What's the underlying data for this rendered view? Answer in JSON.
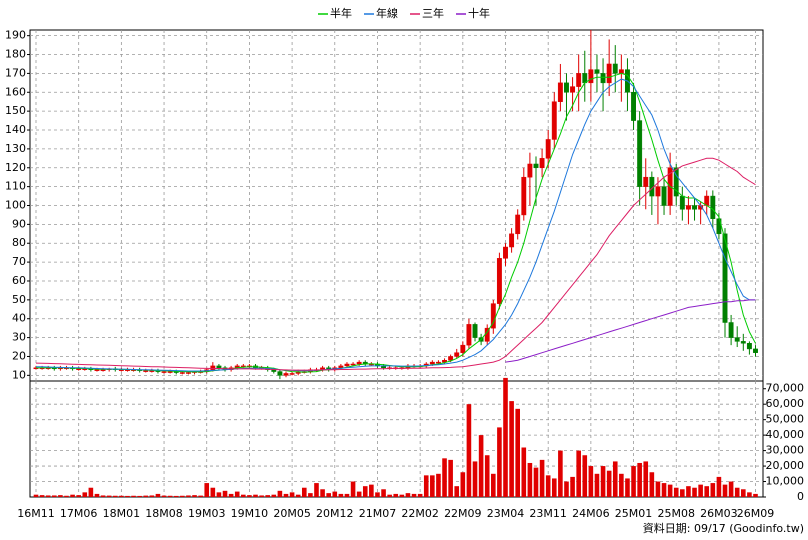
{
  "chart_data": [
    {
      "type": "candlestick",
      "open": [
        14,
        14,
        14,
        14,
        13.5,
        14,
        14,
        13.5,
        13.5,
        13.5,
        13,
        13,
        13,
        13.5,
        13,
        13,
        13,
        13,
        12.5,
        12.5,
        12.5,
        12,
        12,
        12,
        11.5,
        11.5,
        11.5,
        12,
        12,
        13,
        15,
        14,
        13,
        14,
        15,
        15,
        15,
        14,
        14,
        13,
        12,
        10,
        11,
        11,
        12,
        12,
        13,
        13,
        14,
        13,
        14,
        15,
        16,
        16,
        17,
        16,
        16,
        15,
        14,
        14,
        14,
        14,
        15,
        15,
        15,
        16,
        17,
        17,
        18,
        20,
        22,
        26,
        37,
        30,
        28,
        35,
        48,
        72,
        78,
        85,
        95,
        115,
        122,
        120,
        125,
        135,
        155,
        165,
        160,
        163,
        170,
        165,
        172,
        170,
        165,
        175,
        170,
        172,
        160,
        145,
        110,
        115,
        105,
        110,
        100,
        120,
        105,
        98,
        100,
        98,
        100,
        105,
        93,
        85,
        38,
        30,
        28,
        27,
        24
      ],
      "high": [
        15,
        15,
        15,
        15,
        15,
        15,
        15,
        14.5,
        14.5,
        14.5,
        14,
        14,
        14,
        14.5,
        14,
        14,
        14,
        14,
        13.5,
        13.5,
        13.5,
        13,
        13,
        13,
        12.5,
        12.5,
        12.5,
        13,
        14,
        17,
        16,
        15,
        15,
        16,
        16,
        16,
        16,
        15,
        15,
        14,
        13,
        12,
        12,
        13,
        13,
        14,
        14,
        15,
        15,
        15,
        16,
        17,
        17,
        18,
        18,
        17,
        17,
        16,
        15,
        15,
        15,
        16,
        16,
        16,
        17,
        18,
        18,
        19,
        21,
        24,
        28,
        40,
        38,
        32,
        37,
        50,
        75,
        80,
        88,
        98,
        120,
        128,
        126,
        130,
        140,
        160,
        175,
        170,
        168,
        180,
        182,
        193,
        180,
        178,
        188,
        185,
        180,
        178,
        165,
        150,
        125,
        118,
        115,
        115,
        128,
        122,
        110,
        105,
        104,
        102,
        108,
        108,
        96,
        88,
        42,
        36,
        32,
        28,
        26
      ],
      "low": [
        13,
        13,
        13,
        12.5,
        12.5,
        13,
        12.5,
        12.5,
        12.5,
        12,
        12,
        12,
        12,
        12,
        12,
        12,
        12,
        11.5,
        11.5,
        11.5,
        11,
        11,
        11,
        10.5,
        10.5,
        10.5,
        10.5,
        11,
        11,
        12,
        13,
        12,
        12,
        13,
        14,
        14,
        13,
        13,
        12,
        11,
        8,
        9,
        10,
        10,
        11,
        11,
        12,
        12,
        12,
        12,
        13,
        14,
        15,
        15,
        15,
        15,
        14,
        13,
        13,
        13,
        13,
        13,
        14,
        14,
        14,
        15,
        16,
        16,
        17,
        19,
        20,
        24,
        28,
        26,
        26,
        32,
        45,
        68,
        75,
        82,
        92,
        100,
        100,
        115,
        120,
        130,
        150,
        145,
        150,
        150,
        155,
        155,
        160,
        150,
        158,
        160,
        155,
        150,
        140,
        100,
        98,
        95,
        90,
        95,
        95,
        100,
        92,
        90,
        92,
        90,
        95,
        88,
        82,
        30,
        26,
        25,
        23,
        21,
        20
      ],
      "close": [
        14,
        14,
        14,
        13.5,
        14,
        14,
        13.5,
        13.5,
        13.5,
        13,
        13,
        13,
        13.5,
        13,
        13,
        13,
        13,
        12.5,
        12.5,
        12.5,
        12,
        12,
        12,
        11.5,
        11.5,
        11.5,
        12,
        12,
        13,
        15,
        14,
        13,
        14,
        15,
        15,
        15,
        14,
        14,
        13,
        12,
        10,
        11,
        11,
        12,
        12,
        13,
        13,
        14,
        13,
        14,
        15,
        16,
        16,
        17,
        16,
        16,
        15,
        14,
        14,
        14,
        14,
        15,
        15,
        15,
        16,
        17,
        17,
        18,
        20,
        22,
        26,
        37,
        30,
        28,
        35,
        48,
        72,
        78,
        85,
        95,
        115,
        122,
        120,
        125,
        135,
        155,
        165,
        160,
        163,
        170,
        165,
        172,
        170,
        165,
        175,
        170,
        172,
        160,
        145,
        110,
        115,
        105,
        110,
        100,
        120,
        105,
        98,
        100,
        98,
        100,
        105,
        93,
        85,
        38,
        30,
        28,
        27,
        24,
        22
      ],
      "up_color": "#e00000",
      "down_color": "#008000",
      "series": [
        {
          "name": "半年",
          "color": "#00cc00",
          "values": [
            14,
            14,
            14,
            14,
            14,
            14,
            13.8,
            13.7,
            13.6,
            13.4,
            13.3,
            13.2,
            13.2,
            13.2,
            13.1,
            13.1,
            13,
            12.9,
            12.8,
            12.7,
            12.5,
            12.4,
            12.3,
            12.1,
            12,
            11.9,
            11.8,
            11.8,
            12,
            12.4,
            12.8,
            13,
            13.4,
            14,
            14.3,
            14.5,
            14.5,
            14.3,
            14.1,
            13.8,
            13,
            12.5,
            12,
            11.8,
            11.7,
            11.8,
            12,
            12.8,
            13,
            13.2,
            13.7,
            14.3,
            15,
            15.7,
            16,
            16.1,
            15.9,
            15.6,
            15.2,
            14.8,
            14.5,
            14.5,
            14.5,
            14.7,
            15,
            15.6,
            16,
            16.7,
            17.6,
            19,
            21,
            24,
            26.5,
            29,
            33,
            38,
            46,
            53,
            62,
            70,
            80,
            92,
            104,
            114,
            122,
            130,
            138,
            147,
            153,
            160,
            165,
            167,
            168,
            168,
            168,
            169,
            170,
            169,
            164,
            155,
            145,
            135,
            124,
            114,
            110,
            108,
            105,
            104,
            104,
            102,
            100,
            98,
            94,
            82,
            70,
            55,
            42,
            33,
            27
          ]
        },
        {
          "name": "年線",
          "color": "#1e78dc",
          "values": [
            14.5,
            14.5,
            14.4,
            14.3,
            14.2,
            14.1,
            14,
            14,
            13.9,
            13.8,
            13.6,
            13.5,
            13.4,
            13.3,
            13.3,
            13.2,
            13.1,
            13,
            13,
            12.9,
            12.8,
            12.7,
            12.6,
            12.5,
            12.4,
            12.3,
            12.3,
            12.3,
            12.4,
            12.6,
            12.8,
            13,
            13.2,
            13.4,
            13.6,
            13.7,
            13.8,
            13.8,
            13.6,
            13.4,
            13,
            12.8,
            12.6,
            12.5,
            12.4,
            12.5,
            12.7,
            13,
            13.2,
            13.4,
            13.7,
            14,
            14.3,
            14.6,
            14.8,
            15,
            15,
            15,
            15,
            15,
            14.9,
            14.9,
            14.9,
            15,
            15.2,
            15.4,
            15.6,
            16,
            16.5,
            17,
            18,
            19.5,
            21,
            23,
            26,
            29,
            33,
            37,
            42,
            48,
            55,
            62,
            70,
            79,
            88,
            97,
            107,
            117,
            127,
            135,
            143,
            150,
            155,
            160,
            163,
            165,
            167,
            166,
            163,
            158,
            153,
            148,
            140,
            130,
            122,
            116,
            112,
            108,
            104,
            100,
            95,
            88,
            80,
            72,
            65,
            58,
            52,
            50,
            50
          ]
        },
        {
          "name": "三年",
          "color": "#dc1e64",
          "values": [
            16.5,
            16.4,
            16.3,
            16.2,
            16.1,
            16,
            15.9,
            15.8,
            15.7,
            15.6,
            15.5,
            15.4,
            15.3,
            15.2,
            15.1,
            15,
            14.9,
            14.8,
            14.7,
            14.6,
            14.5,
            14.4,
            14.3,
            14.2,
            14.1,
            14,
            13.9,
            13.8,
            13.7,
            13.6,
            13.6,
            13.5,
            13.5,
            13.5,
            13.4,
            13.4,
            13.3,
            13.3,
            13.2,
            13.1,
            13,
            12.9,
            12.8,
            12.8,
            12.8,
            12.8,
            12.9,
            12.9,
            13,
            13,
            13.1,
            13.1,
            13.2,
            13.3,
            13.3,
            13.4,
            13.5,
            13.5,
            13.6,
            13.6,
            13.7,
            13.7,
            13.8,
            13.8,
            13.9,
            14,
            14,
            14.1,
            14.2,
            14.4,
            14.6,
            15,
            15.5,
            16,
            16.5,
            17,
            18,
            20,
            23,
            26,
            29,
            32,
            35,
            38,
            42,
            46,
            50,
            54,
            58,
            62,
            66,
            70,
            74,
            79,
            84,
            88,
            92,
            96,
            100,
            103,
            106,
            109,
            112,
            115,
            117,
            119,
            121,
            122,
            123,
            124,
            125,
            125,
            124,
            122,
            120,
            118,
            115,
            113,
            111
          ]
        },
        {
          "name": "十年",
          "color": "#8c1ec8",
          "values": [
            null,
            null,
            null,
            null,
            null,
            null,
            null,
            null,
            null,
            null,
            null,
            null,
            null,
            null,
            null,
            null,
            null,
            null,
            null,
            null,
            null,
            null,
            null,
            null,
            null,
            null,
            null,
            null,
            null,
            null,
            null,
            null,
            null,
            null,
            null,
            null,
            null,
            null,
            null,
            null,
            null,
            null,
            null,
            null,
            null,
            null,
            null,
            null,
            null,
            null,
            null,
            null,
            null,
            null,
            null,
            null,
            null,
            null,
            null,
            null,
            null,
            null,
            null,
            null,
            null,
            null,
            null,
            null,
            null,
            null,
            null,
            null,
            null,
            null,
            null,
            null,
            null,
            17,
            17.5,
            18,
            19,
            20,
            21,
            22,
            23,
            24,
            25,
            26,
            27,
            28,
            29,
            30,
            31,
            32,
            33,
            34,
            35,
            36,
            37,
            38,
            39,
            40,
            41,
            42,
            43,
            44,
            45,
            46,
            46.5,
            47,
            47.5,
            48,
            48.5,
            49,
            49,
            49.5,
            49.5,
            50,
            50
          ]
        }
      ],
      "ylim": [
        7,
        193
      ],
      "yticks": [
        10,
        20,
        30,
        40,
        50,
        60,
        70,
        80,
        90,
        100,
        110,
        120,
        130,
        140,
        150,
        160,
        170,
        180,
        190
      ],
      "grid": true,
      "legend": "top"
    },
    {
      "type": "bar",
      "categories": [
        "16M11",
        null,
        null,
        null,
        null,
        null,
        null,
        "17M06",
        null,
        null,
        null,
        null,
        null,
        null,
        "18M01",
        null,
        null,
        null,
        null,
        null,
        null,
        "18M08",
        null,
        null,
        null,
        null,
        null,
        null,
        "19M03",
        null,
        null,
        null,
        null,
        null,
        null,
        "19M10",
        null,
        null,
        null,
        null,
        null,
        null,
        "20M05",
        null,
        null,
        null,
        null,
        null,
        null,
        "20M12",
        null,
        null,
        null,
        null,
        null,
        null,
        "21M07",
        null,
        null,
        null,
        null,
        null,
        null,
        "22M02",
        null,
        null,
        null,
        null,
        null,
        null,
        "22M09",
        null,
        null,
        null,
        null,
        null,
        null,
        "23M04",
        null,
        null,
        null,
        null,
        null,
        null,
        "23M11",
        null,
        null,
        null,
        null,
        null,
        null,
        "24M06",
        null,
        null,
        null,
        null,
        null,
        null,
        "25M01",
        null,
        null,
        null,
        null,
        null,
        null,
        "25M08",
        null,
        null,
        null,
        null,
        null,
        null,
        "26M03",
        null,
        null,
        null,
        null,
        null,
        "26M09"
      ],
      "values": [
        1500,
        1200,
        1000,
        1000,
        1200,
        800,
        1500,
        1200,
        3000,
        6000,
        2000,
        1000,
        900,
        800,
        800,
        700,
        800,
        700,
        900,
        1000,
        2000,
        900,
        800,
        700,
        800,
        1000,
        1200,
        900,
        9000,
        6000,
        3000,
        4000,
        2000,
        3500,
        1500,
        1200,
        1500,
        1000,
        1200,
        1500,
        4000,
        2000,
        3000,
        1500,
        6000,
        2500,
        9000,
        5000,
        2500,
        3500,
        2000,
        2000,
        10000,
        3500,
        7000,
        8000,
        3000,
        5000,
        1500,
        2000,
        1500,
        2500,
        2000,
        2000,
        14000,
        14000,
        15000,
        25000,
        24000,
        7000,
        16000,
        60000,
        23000,
        40000,
        27000,
        15000,
        45000,
        77000,
        62000,
        57000,
        32000,
        22000,
        19000,
        24000,
        14000,
        12000,
        30000,
        10000,
        13000,
        30000,
        27000,
        20000,
        15000,
        20000,
        17000,
        23000,
        15000,
        12000,
        20000,
        22000,
        23000,
        16000,
        10000,
        9000,
        8000,
        6000,
        5000,
        7000,
        6000,
        8000,
        7000,
        9000,
        13000,
        8000,
        10000,
        6000,
        5000,
        3000,
        2000
      ],
      "color": "#e00000",
      "ylim": [
        0,
        75000
      ],
      "yticks": [
        0,
        {
          "value": 10000,
          "label": "10,000"
        },
        {
          "value": 20000,
          "label": "20,000"
        },
        {
          "value": 30000,
          "label": "30,000"
        },
        {
          "value": 40000,
          "label": "40,000"
        },
        {
          "value": 50000,
          "label": "50,000"
        },
        {
          "value": 60000,
          "label": "60,000"
        },
        {
          "value": 70000,
          "label": "70,000"
        }
      ],
      "grid": true
    }
  ],
  "footer": "資料日期: 09/17 (Goodinfo.tw)"
}
